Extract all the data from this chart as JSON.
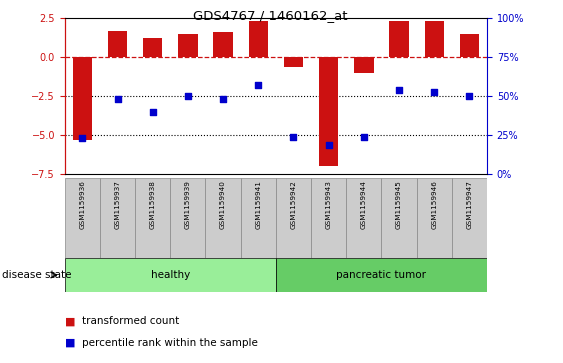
{
  "title": "GDS4767 / 1460162_at",
  "samples": [
    "GSM1159936",
    "GSM1159937",
    "GSM1159938",
    "GSM1159939",
    "GSM1159940",
    "GSM1159941",
    "GSM1159942",
    "GSM1159943",
    "GSM1159944",
    "GSM1159945",
    "GSM1159946",
    "GSM1159947"
  ],
  "red_bars": [
    -5.3,
    1.7,
    1.2,
    1.5,
    1.6,
    2.3,
    -0.6,
    -7.0,
    -1.0,
    2.3,
    2.3,
    1.5
  ],
  "blue_dots_left": [
    -5.2,
    -2.7,
    -3.5,
    -2.5,
    -2.7,
    -1.8,
    -5.1,
    -5.6,
    -5.1,
    -2.1,
    -2.2,
    -2.5
  ],
  "left_ylim": [
    -7.5,
    2.5
  ],
  "right_ylim": [
    0,
    100
  ],
  "left_yticks": [
    -7.5,
    -5.0,
    -2.5,
    0.0,
    2.5
  ],
  "right_yticks": [
    0,
    25,
    50,
    75,
    100
  ],
  "right_yticklabels": [
    "0%",
    "25%",
    "50%",
    "75%",
    "100%"
  ],
  "dotted_lines": [
    -2.5,
    -5.0
  ],
  "group_labels": [
    "healthy",
    "pancreatic tumor"
  ],
  "bar_color": "#CC1111",
  "dot_color": "#0000CC",
  "healthy_color": "#99EE99",
  "tumor_color": "#66CC66",
  "bg_color": "#CCCCCC",
  "disease_state_label": "disease state"
}
